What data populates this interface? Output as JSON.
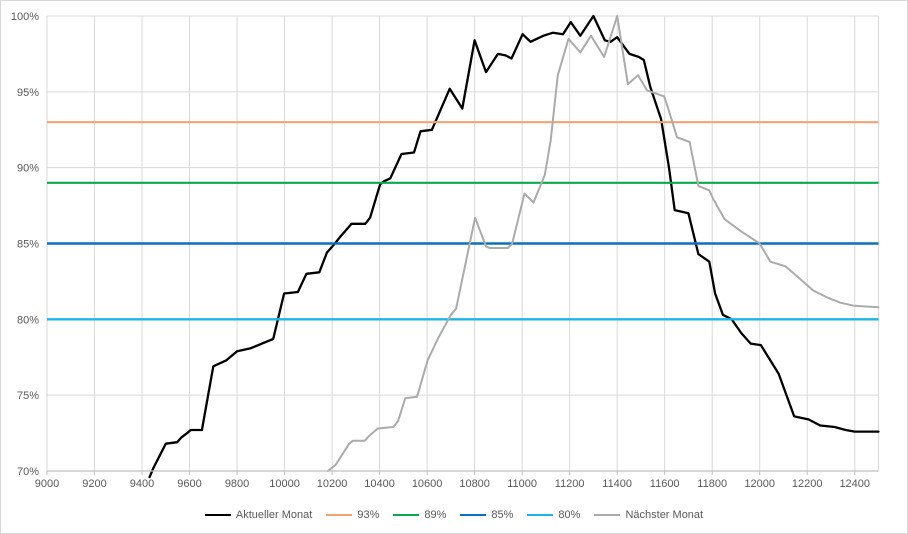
{
  "chart_data": {
    "type": "line",
    "title": "",
    "xlabel": "",
    "ylabel": "",
    "grid": true,
    "legend_position": "bottom",
    "x_range": [
      9000,
      12500
    ],
    "y_range": [
      70,
      100
    ],
    "x_tick_step": 200,
    "y_tick_step": 5,
    "x_tick_labels": [
      "9000",
      "9200",
      "9400",
      "9600",
      "9800",
      "10000",
      "10200",
      "10400",
      "10600",
      "10800",
      "11000",
      "11200",
      "11400",
      "11600",
      "11800",
      "12000",
      "12200",
      "12400"
    ],
    "y_tick_labels": [
      "70%",
      "75%",
      "80%",
      "85%",
      "90%",
      "95%",
      "100%"
    ],
    "colors": {
      "grid": "#d9d9d9",
      "axis_line": "#bfbfbf",
      "tick_text": "#595959",
      "background": "#ffffff"
    },
    "ref_lines": [
      {
        "name": "93%",
        "value": 93,
        "color": "#f2a374",
        "width": 2.2
      },
      {
        "name": "89%",
        "value": 89,
        "color": "#0aa84f",
        "width": 2.2
      },
      {
        "name": "85%",
        "value": 85,
        "color": "#0b70c0",
        "width": 2.4
      },
      {
        "name": "80%",
        "value": 80,
        "color": "#1cb4eb",
        "width": 2.4
      }
    ],
    "series": [
      {
        "name": "Aktueller Monat",
        "color": "#000000",
        "width": 2.3,
        "points": [
          [
            9432,
            69.6
          ],
          [
            9448,
            70.2
          ],
          [
            9500,
            71.8
          ],
          [
            9548,
            71.9
          ],
          [
            9565,
            72.2
          ],
          [
            9590,
            72.5
          ],
          [
            9605,
            72.7
          ],
          [
            9652,
            72.7
          ],
          [
            9700,
            76.9
          ],
          [
            9755,
            77.3
          ],
          [
            9800,
            77.9
          ],
          [
            9858,
            78.1
          ],
          [
            9905,
            78.4
          ],
          [
            9952,
            78.7
          ],
          [
            9998,
            81.7
          ],
          [
            10056,
            81.8
          ],
          [
            10092,
            83.0
          ],
          [
            10146,
            83.1
          ],
          [
            10178,
            84.4
          ],
          [
            10212,
            85.0
          ],
          [
            10232,
            85.4
          ],
          [
            10282,
            86.3
          ],
          [
            10340,
            86.3
          ],
          [
            10360,
            86.7
          ],
          [
            10402,
            88.9
          ],
          [
            10418,
            89.1
          ],
          [
            10445,
            89.3
          ],
          [
            10492,
            90.9
          ],
          [
            10545,
            91.0
          ],
          [
            10572,
            92.4
          ],
          [
            10620,
            92.5
          ],
          [
            10695,
            95.2
          ],
          [
            10748,
            93.9
          ],
          [
            10800,
            98.4
          ],
          [
            10848,
            96.3
          ],
          [
            10898,
            97.5
          ],
          [
            10930,
            97.4
          ],
          [
            10955,
            97.2
          ],
          [
            11002,
            98.8
          ],
          [
            11035,
            98.3
          ],
          [
            11090,
            98.7
          ],
          [
            11130,
            98.9
          ],
          [
            11172,
            98.8
          ],
          [
            11205,
            99.6
          ],
          [
            11245,
            98.7
          ],
          [
            11300,
            100.0
          ],
          [
            11348,
            98.4
          ],
          [
            11372,
            98.3
          ],
          [
            11400,
            98.6
          ],
          [
            11452,
            97.5
          ],
          [
            11492,
            97.3
          ],
          [
            11512,
            97.1
          ],
          [
            11540,
            95.3
          ],
          [
            11585,
            93.2
          ],
          [
            11618,
            90.0
          ],
          [
            11642,
            87.2
          ],
          [
            11700,
            87.0
          ],
          [
            11742,
            84.3
          ],
          [
            11788,
            83.8
          ],
          [
            11812,
            81.7
          ],
          [
            11845,
            80.3
          ],
          [
            11882,
            80.0
          ],
          [
            11922,
            79.1
          ],
          [
            11962,
            78.4
          ],
          [
            12005,
            78.3
          ],
          [
            12080,
            76.4
          ],
          [
            12145,
            73.6
          ],
          [
            12205,
            73.4
          ],
          [
            12255,
            73.0
          ],
          [
            12315,
            72.9
          ],
          [
            12362,
            72.7
          ],
          [
            12400,
            72.6
          ],
          [
            12500,
            72.6
          ]
        ]
      },
      {
        "name": "Nächster Monat",
        "color": "#ababab",
        "width": 2.0,
        "points": [
          [
            10182,
            70.0
          ],
          [
            10215,
            70.4
          ],
          [
            10272,
            71.8
          ],
          [
            10288,
            72.0
          ],
          [
            10338,
            72.0
          ],
          [
            10355,
            72.3
          ],
          [
            10392,
            72.8
          ],
          [
            10458,
            72.9
          ],
          [
            10478,
            73.3
          ],
          [
            10508,
            74.8
          ],
          [
            10558,
            74.9
          ],
          [
            10602,
            77.3
          ],
          [
            10648,
            78.8
          ],
          [
            10700,
            80.3
          ],
          [
            10722,
            80.7
          ],
          [
            10802,
            86.7
          ],
          [
            10848,
            84.8
          ],
          [
            10862,
            84.7
          ],
          [
            10940,
            84.7
          ],
          [
            10958,
            85.0
          ],
          [
            11010,
            88.3
          ],
          [
            11048,
            87.7
          ],
          [
            11095,
            89.5
          ],
          [
            11120,
            91.8
          ],
          [
            11150,
            96.1
          ],
          [
            11195,
            98.5
          ],
          [
            11245,
            97.6
          ],
          [
            11290,
            98.7
          ],
          [
            11345,
            97.3
          ],
          [
            11400,
            100.0
          ],
          [
            11445,
            95.5
          ],
          [
            11488,
            96.1
          ],
          [
            11525,
            95.1
          ],
          [
            11598,
            94.7
          ],
          [
            11615,
            93.9
          ],
          [
            11652,
            92.0
          ],
          [
            11705,
            91.7
          ],
          [
            11742,
            88.8
          ],
          [
            11788,
            88.5
          ],
          [
            11802,
            88.0
          ],
          [
            11852,
            86.6
          ],
          [
            11922,
            85.8
          ],
          [
            12000,
            85.0
          ],
          [
            12045,
            83.8
          ],
          [
            12108,
            83.5
          ],
          [
            12160,
            82.8
          ],
          [
            12225,
            81.9
          ],
          [
            12290,
            81.4
          ],
          [
            12340,
            81.1
          ],
          [
            12395,
            80.9
          ],
          [
            12500,
            80.8
          ]
        ]
      }
    ],
    "legend": [
      {
        "label": "Aktueller Monat",
        "color": "#000000"
      },
      {
        "label": "93%",
        "color": "#f2a374"
      },
      {
        "label": "89%",
        "color": "#0aa84f"
      },
      {
        "label": "85%",
        "color": "#0b70c0"
      },
      {
        "label": "80%",
        "color": "#1cb4eb"
      },
      {
        "label": "Nächster Monat",
        "color": "#ababab"
      }
    ]
  }
}
